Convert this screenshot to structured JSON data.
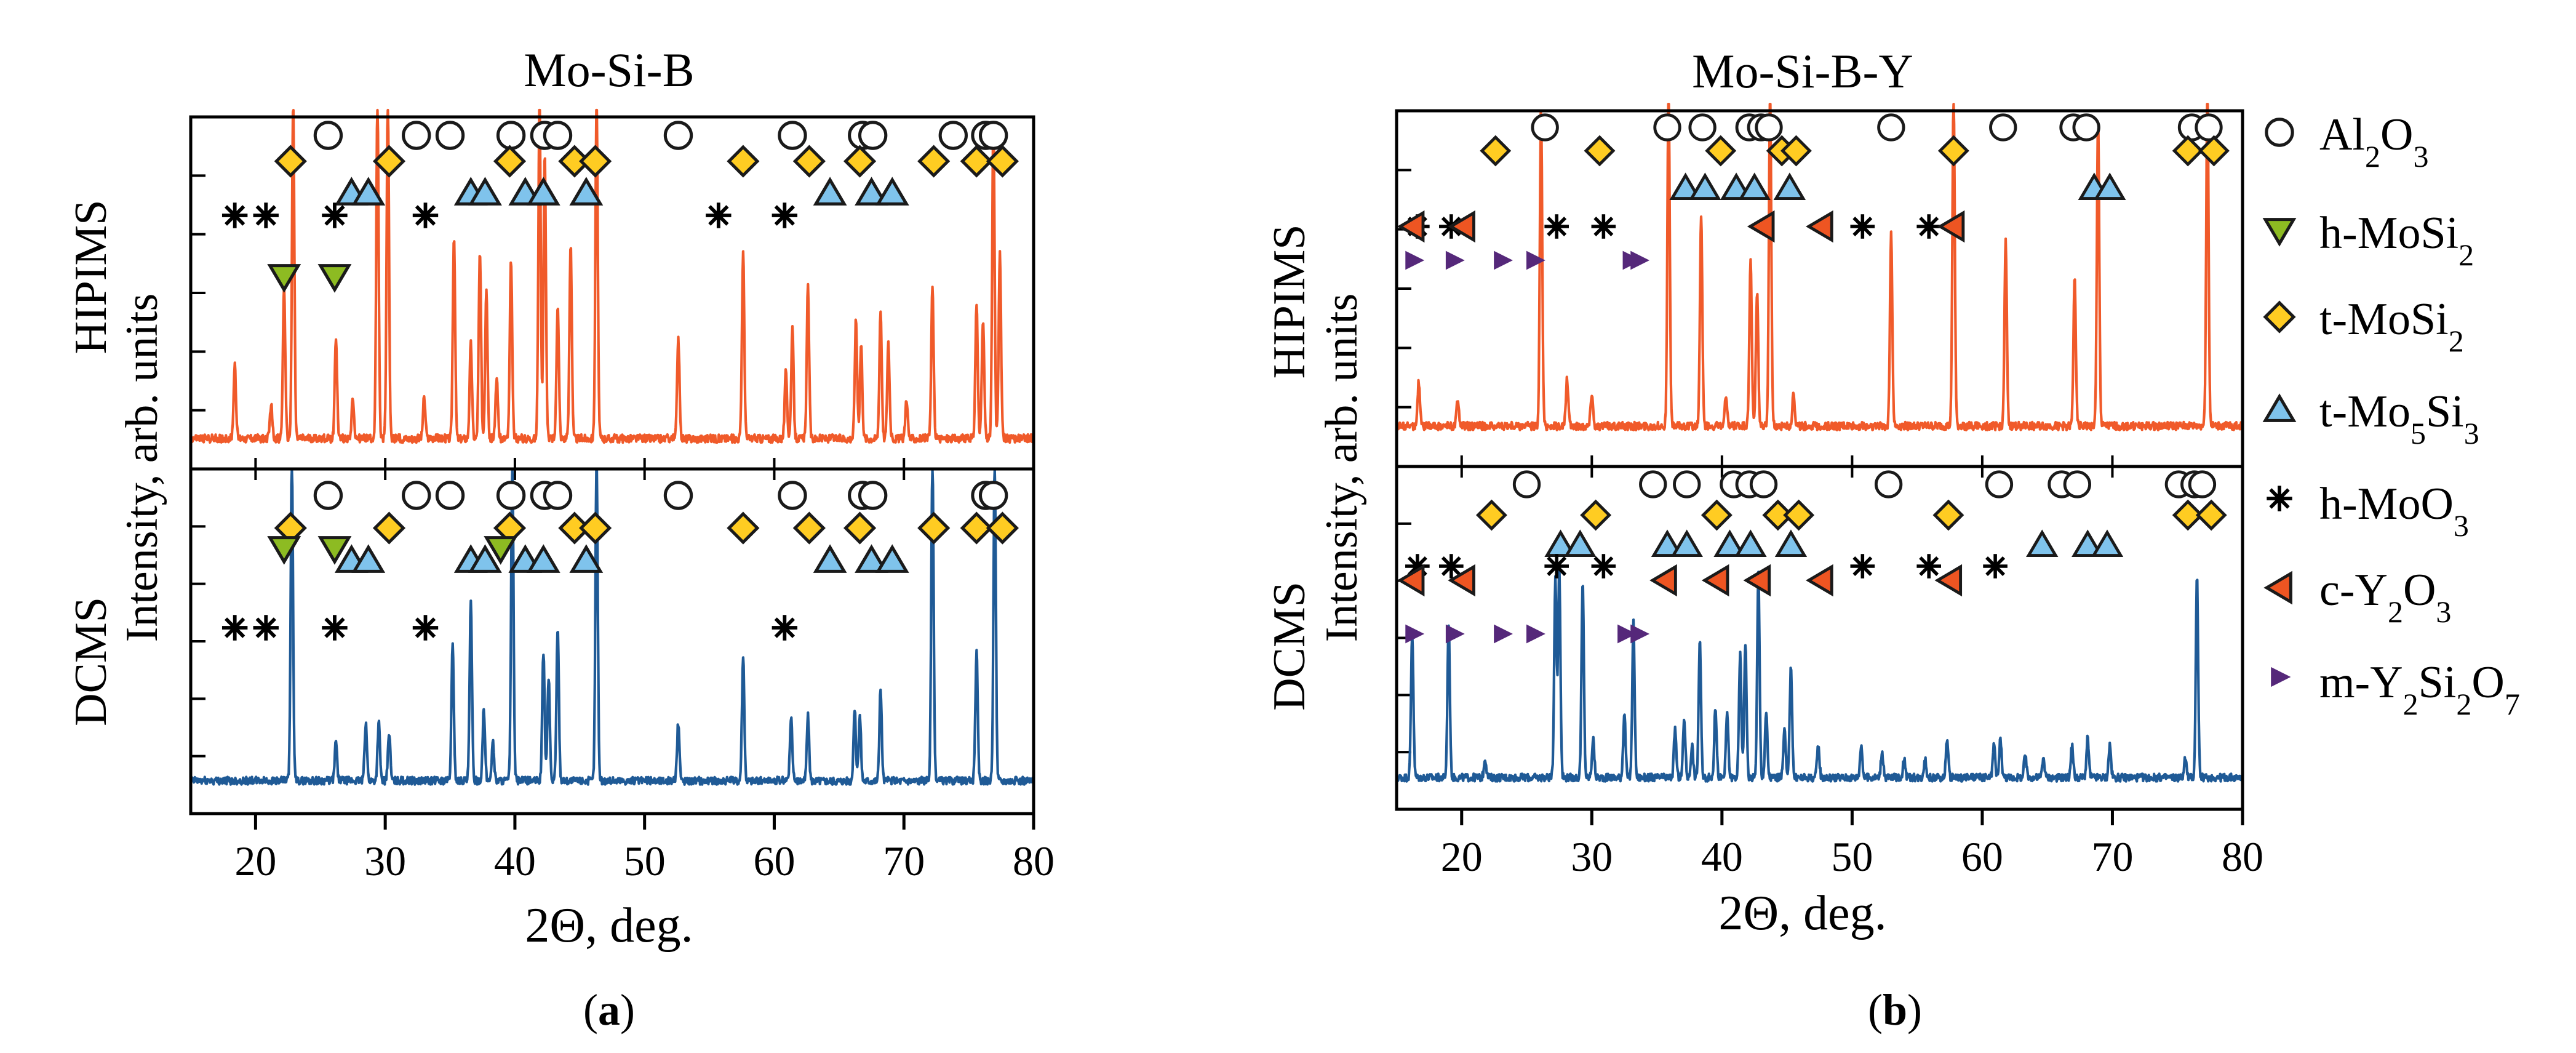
{
  "chart_data": [
    {
      "type": "line",
      "panel_label": "a",
      "title": "Mo-Si-B",
      "xlabel": "2Θ, deg.",
      "ylabel": "Intensity, arb. units",
      "xlim": [
        15,
        80
      ],
      "xticks": [
        20,
        30,
        40,
        50,
        60,
        70,
        80
      ],
      "grid": false,
      "series": [
        {
          "name": "HIPIMS",
          "color": "#F05A2A",
          "baseline": 0.05,
          "noise": 0.012,
          "peaks": [
            [
              18.4,
              0.22
            ],
            [
              21.2,
              0.1
            ],
            [
              22.2,
              0.45
            ],
            [
              22.9,
              1.0
            ],
            [
              26.2,
              0.3
            ],
            [
              27.5,
              0.12
            ],
            [
              29.4,
              1.0
            ],
            [
              30.2,
              1.0
            ],
            [
              33.0,
              0.12
            ],
            [
              35.3,
              0.6
            ],
            [
              36.6,
              0.28
            ],
            [
              37.3,
              0.55
            ],
            [
              37.8,
              0.45
            ],
            [
              38.6,
              0.18
            ],
            [
              39.7,
              0.52
            ],
            [
              41.9,
              1.0
            ],
            [
              42.3,
              0.85
            ],
            [
              43.3,
              0.4
            ],
            [
              44.3,
              0.58
            ],
            [
              46.3,
              1.0
            ],
            [
              52.6,
              0.3
            ],
            [
              57.6,
              0.55
            ],
            [
              60.9,
              0.2
            ],
            [
              61.4,
              0.32
            ],
            [
              62.6,
              0.45
            ],
            [
              66.3,
              0.35
            ],
            [
              66.7,
              0.28
            ],
            [
              68.2,
              0.38
            ],
            [
              68.8,
              0.28
            ],
            [
              70.2,
              0.12
            ],
            [
              72.2,
              0.45
            ],
            [
              75.6,
              0.4
            ],
            [
              76.1,
              0.35
            ],
            [
              76.9,
              0.95
            ],
            [
              77.4,
              0.55
            ]
          ]
        },
        {
          "name": "DCMS",
          "color": "#1F5A96",
          "baseline": 0.06,
          "noise": 0.012,
          "peaks": [
            [
              22.8,
              1.0
            ],
            [
              26.2,
              0.12
            ],
            [
              28.5,
              0.18
            ],
            [
              29.5,
              0.18
            ],
            [
              30.3,
              0.15
            ],
            [
              35.2,
              0.42
            ],
            [
              36.6,
              0.55
            ],
            [
              37.6,
              0.22
            ],
            [
              38.3,
              0.12
            ],
            [
              39.8,
              1.0
            ],
            [
              42.2,
              0.4
            ],
            [
              42.6,
              0.32
            ],
            [
              43.3,
              0.48
            ],
            [
              46.3,
              1.0
            ],
            [
              52.6,
              0.18
            ],
            [
              57.6,
              0.38
            ],
            [
              61.3,
              0.2
            ],
            [
              62.6,
              0.2
            ],
            [
              66.2,
              0.22
            ],
            [
              66.6,
              0.2
            ],
            [
              68.2,
              0.28
            ],
            [
              72.2,
              1.0
            ],
            [
              75.6,
              0.4
            ],
            [
              77.0,
              1.0
            ]
          ]
        }
      ],
      "phase_markers": [
        {
          "phase": "Al2O3",
          "series": "HIPIMS",
          "x": [
            25.6,
            32.4,
            35.0,
            39.7,
            42.3,
            43.3,
            52.6,
            61.4,
            66.8,
            67.6,
            73.8,
            76.3,
            76.9
          ]
        },
        {
          "phase": "t-MoSi2",
          "series": "HIPIMS",
          "x": [
            22.7,
            30.3,
            39.6,
            44.6,
            46.2,
            57.6,
            62.7,
            66.6,
            72.3,
            75.6,
            77.6
          ]
        },
        {
          "phase": "t-Mo5Si3",
          "series": "HIPIMS",
          "x": [
            27.4,
            28.7,
            36.6,
            37.7,
            40.8,
            42.2,
            45.5,
            64.3,
            67.5,
            69.1
          ]
        },
        {
          "phase": "h-MoO3",
          "series": "HIPIMS",
          "x": [
            18.4,
            20.8,
            26.1,
            33.1,
            55.7,
            60.8
          ]
        },
        {
          "phase": "h-MoSi2",
          "series": "HIPIMS",
          "x": [
            22.2,
            26.1
          ]
        },
        {
          "phase": "Al2O3",
          "series": "DCMS",
          "x": [
            25.6,
            32.4,
            35.0,
            39.7,
            42.3,
            43.3,
            52.6,
            61.4,
            66.8,
            67.6,
            76.3,
            76.9
          ]
        },
        {
          "phase": "t-MoSi2",
          "series": "DCMS",
          "x": [
            22.7,
            30.3,
            39.6,
            44.6,
            46.2,
            57.6,
            62.7,
            66.6,
            72.3,
            75.6,
            77.6
          ]
        },
        {
          "phase": "t-Mo5Si3",
          "series": "DCMS",
          "x": [
            27.4,
            28.7,
            36.6,
            37.7,
            40.8,
            42.2,
            45.5,
            64.3,
            67.5,
            69.1
          ]
        },
        {
          "phase": "h-MoSi2",
          "series": "DCMS",
          "x": [
            22.2,
            26.1,
            38.9
          ]
        },
        {
          "phase": "h-MoO3",
          "series": "DCMS",
          "x": [
            18.4,
            20.8,
            26.1,
            33.1,
            60.8
          ]
        }
      ]
    },
    {
      "type": "line",
      "panel_label": "b",
      "title": "Mo-Si-B-Y",
      "xlabel": "2Θ, deg.",
      "ylabel": "Intensity, arb. units",
      "xlim": [
        15,
        80
      ],
      "xticks": [
        20,
        30,
        40,
        50,
        60,
        70,
        80
      ],
      "grid": false,
      "series": [
        {
          "name": "HIPIMS",
          "color": "#F05A2A",
          "baseline": 0.06,
          "noise": 0.012,
          "peaks": [
            [
              16.7,
              0.13
            ],
            [
              19.7,
              0.08
            ],
            [
              26.1,
              0.95
            ],
            [
              28.1,
              0.14
            ],
            [
              30.0,
              0.1
            ],
            [
              35.9,
              1.0
            ],
            [
              38.4,
              0.63
            ],
            [
              40.3,
              0.08
            ],
            [
              42.2,
              0.5
            ],
            [
              42.7,
              0.4
            ],
            [
              43.7,
              1.0
            ],
            [
              45.5,
              0.1
            ],
            [
              53.0,
              0.58
            ],
            [
              57.8,
              1.0
            ],
            [
              61.8,
              0.55
            ],
            [
              67.1,
              0.45
            ],
            [
              68.9,
              0.92
            ],
            [
              77.3,
              1.0
            ]
          ]
        },
        {
          "name": "DCMS",
          "color": "#1F5A96",
          "baseline": 0.06,
          "noise": 0.012,
          "peaks": [
            [
              16.2,
              0.45
            ],
            [
              19.0,
              0.48
            ],
            [
              21.8,
              0.06
            ],
            [
              27.2,
              0.62
            ],
            [
              27.5,
              0.65
            ],
            [
              29.3,
              0.6
            ],
            [
              30.1,
              0.12
            ],
            [
              32.5,
              0.2
            ],
            [
              33.2,
              0.48
            ],
            [
              36.4,
              0.15
            ],
            [
              37.1,
              0.18
            ],
            [
              37.7,
              0.1
            ],
            [
              38.3,
              0.42
            ],
            [
              39.5,
              0.22
            ],
            [
              40.4,
              0.2
            ],
            [
              41.4,
              0.38
            ],
            [
              41.8,
              0.42
            ],
            [
              42.8,
              0.63
            ],
            [
              43.4,
              0.2
            ],
            [
              44.8,
              0.15
            ],
            [
              45.3,
              0.35
            ],
            [
              47.4,
              0.1
            ],
            [
              50.7,
              0.1
            ],
            [
              52.3,
              0.08
            ],
            [
              54.0,
              0.06
            ],
            [
              55.6,
              0.06
            ],
            [
              57.3,
              0.12
            ],
            [
              60.9,
              0.1
            ],
            [
              61.4,
              0.12
            ],
            [
              63.3,
              0.07
            ],
            [
              64.7,
              0.06
            ],
            [
              66.9,
              0.1
            ],
            [
              68.1,
              0.12
            ],
            [
              69.8,
              0.1
            ],
            [
              75.6,
              0.06
            ],
            [
              76.5,
              0.62
            ]
          ]
        }
      ],
      "phase_markers": [
        {
          "phase": "Al2O3",
          "series": "HIPIMS",
          "x": [
            26.4,
            35.8,
            38.5,
            42.1,
            43.0,
            43.6,
            53.0,
            61.6,
            67.0,
            68.0,
            76.1,
            77.4
          ]
        },
        {
          "phase": "t-MoSi2",
          "series": "HIPIMS",
          "x": [
            22.6,
            30.6,
            39.9,
            44.6,
            45.7,
            57.8,
            75.8,
            77.8
          ]
        },
        {
          "phase": "t-Mo5Si3",
          "series": "HIPIMS",
          "x": [
            37.2,
            38.7,
            41.1,
            42.5,
            45.2,
            68.6,
            69.8
          ]
        },
        {
          "phase": "h-MoO3",
          "series": "HIPIMS",
          "x": [
            16.6,
            19.2,
            27.3,
            30.9,
            50.8,
            55.9
          ]
        },
        {
          "phase": "c-Y2O3",
          "series": "HIPIMS",
          "x": [
            16.2,
            20.1,
            43.1,
            47.6,
            57.7
          ]
        },
        {
          "phase": "m-Y2Si2O7",
          "series": "HIPIMS",
          "x": [
            16.3,
            19.4,
            23.1,
            25.6,
            33.0,
            33.6
          ]
        },
        {
          "phase": "Al2O3",
          "series": "DCMS",
          "x": [
            25.0,
            34.7,
            37.3,
            40.9,
            42.1,
            43.2,
            52.8,
            61.3,
            66.1,
            67.3,
            75.1,
            76.3,
            76.9
          ]
        },
        {
          "phase": "t-MoSi2",
          "series": "DCMS",
          "x": [
            22.3,
            30.3,
            39.6,
            44.3,
            45.9,
            57.4,
            75.8,
            77.6
          ]
        },
        {
          "phase": "t-Mo5Si3",
          "series": "DCMS",
          "x": [
            27.6,
            29.1,
            35.8,
            37.3,
            40.6,
            42.2,
            45.3,
            64.6,
            68.1,
            69.6
          ]
        },
        {
          "phase": "h-MoO3",
          "series": "DCMS",
          "x": [
            16.6,
            19.2,
            27.3,
            30.9,
            50.8,
            55.9,
            61.0
          ]
        },
        {
          "phase": "c-Y2O3",
          "series": "DCMS",
          "x": [
            16.2,
            20.1,
            35.6,
            39.6,
            42.8,
            47.6,
            57.5
          ]
        },
        {
          "phase": "m-Y2Si2O7",
          "series": "DCMS",
          "x": [
            16.3,
            19.4,
            23.1,
            25.6,
            32.6,
            33.6
          ]
        }
      ]
    }
  ],
  "legend": {
    "placement": "right",
    "items": [
      {
        "key": "al2o3",
        "symbol": "circle",
        "color": "#FFFFFF",
        "base": "Al",
        "sub1": "2",
        "mid": "O",
        "sub2": "3",
        "tail": "",
        "sub3": ""
      },
      {
        "key": "h-mosi2",
        "symbol": "triangle-down",
        "color": "#8DBB22",
        "base": "h-MoSi",
        "sub1": "2",
        "mid": "",
        "sub2": "",
        "tail": "",
        "sub3": ""
      },
      {
        "key": "t-mosi2",
        "symbol": "diamond",
        "color": "#FFCC22",
        "base": "t-MoSi",
        "sub1": "2",
        "mid": "",
        "sub2": "",
        "tail": "",
        "sub3": ""
      },
      {
        "key": "t-mo5si3",
        "symbol": "triangle-up",
        "color": "#7FC3EC",
        "base": "t-Mo",
        "sub1": "5",
        "mid": "Si",
        "sub2": "3",
        "tail": "",
        "sub3": ""
      },
      {
        "key": "h-moo3",
        "symbol": "asterisk",
        "color": "#000000",
        "base": "h-MoO",
        "sub1": "3",
        "mid": "",
        "sub2": "",
        "tail": "",
        "sub3": ""
      },
      {
        "key": "c-y2o3",
        "symbol": "triangle-left",
        "color": "#EE5522",
        "base": "c-Y",
        "sub1": "2",
        "mid": "O",
        "sub2": "3",
        "tail": "",
        "sub3": ""
      },
      {
        "key": "m-y2si2o7",
        "symbol": "triangle-right",
        "color": "#55287A",
        "base": "m-Y",
        "sub1": "2",
        "mid": "Si",
        "sub2": "2",
        "tail": "O",
        "sub3": "7"
      }
    ]
  },
  "phase_symbols": {
    "Al2O3": {
      "symbol": "circle",
      "color": "#FFFFFF"
    },
    "h-MoSi2": {
      "symbol": "triangle-down",
      "color": "#8DBB22"
    },
    "t-MoSi2": {
      "symbol": "diamond",
      "color": "#FFCC22"
    },
    "t-Mo5Si3": {
      "symbol": "triangle-up",
      "color": "#7FC3EC"
    },
    "h-MoO3": {
      "symbol": "asterisk",
      "color": "#000000"
    },
    "c-Y2O3": {
      "symbol": "triangle-left",
      "color": "#EE5522"
    },
    "m-Y2Si2O7": {
      "symbol": "triangle-right",
      "color": "#55287A"
    }
  }
}
